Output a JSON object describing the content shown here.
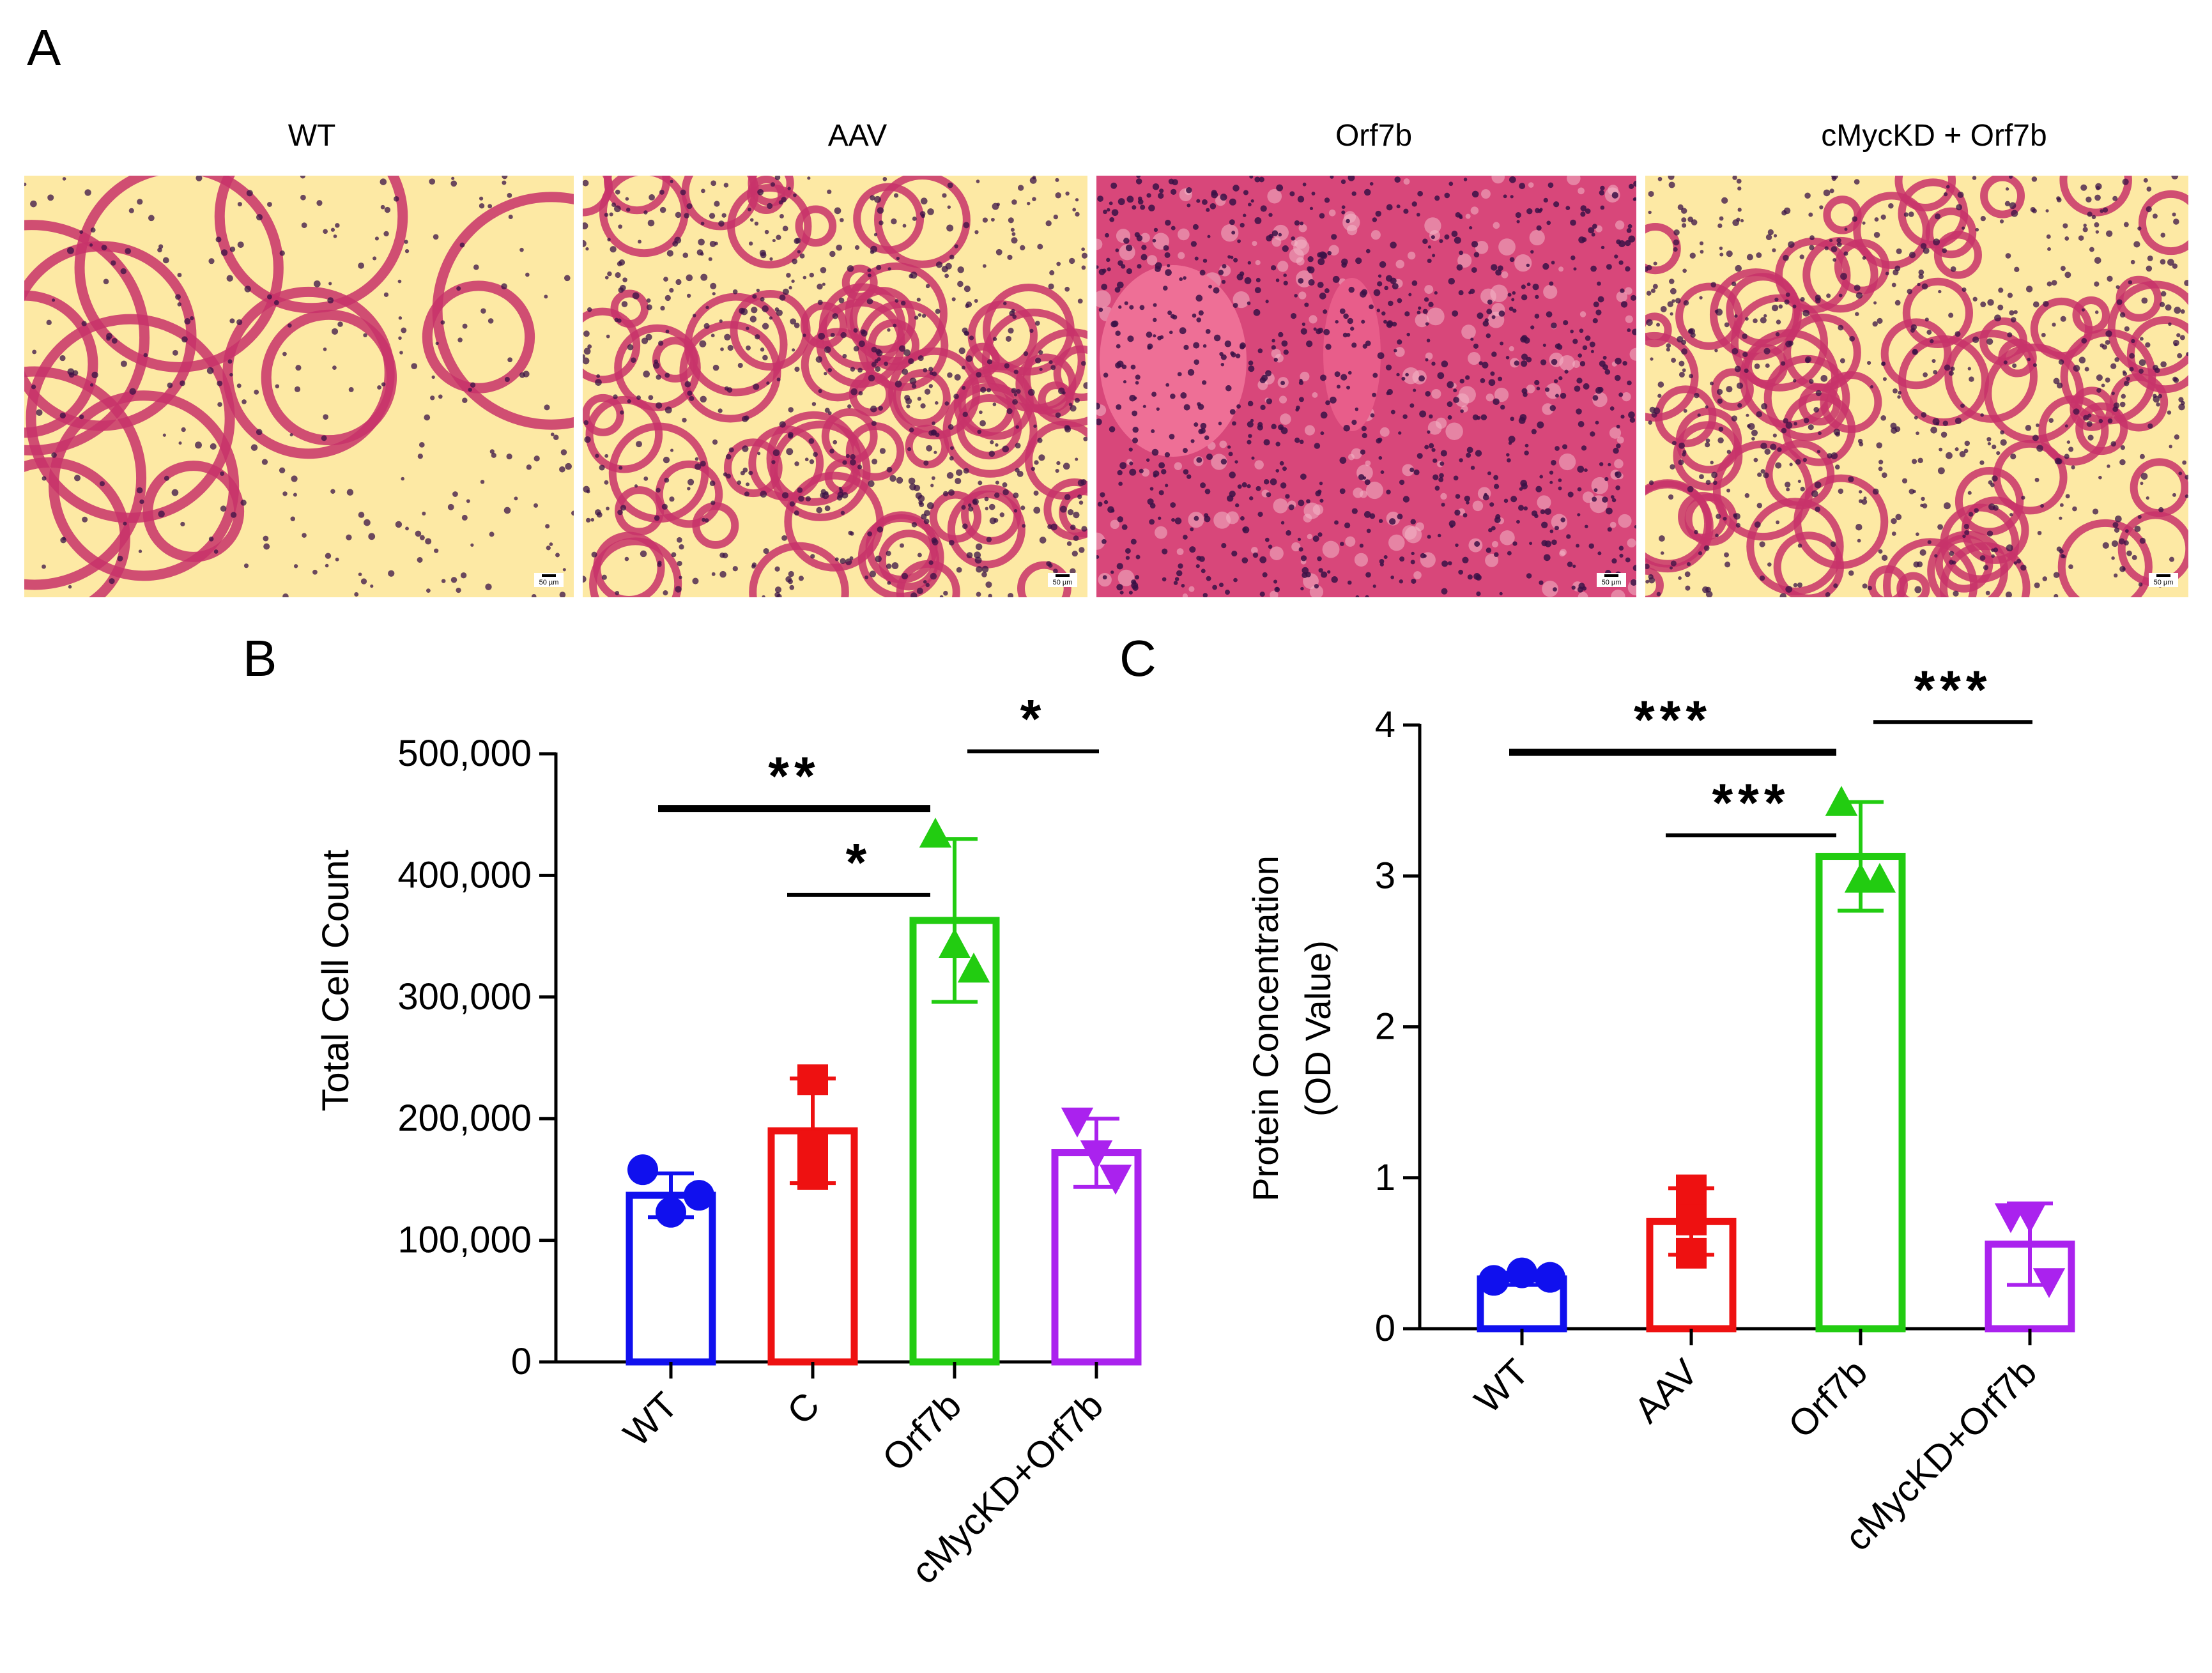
{
  "figure": {
    "panel_labels": [
      "A",
      "B",
      "C"
    ],
    "panel_a": {
      "micrographs": [
        {
          "label": "WT",
          "scale_bar": "50 µm",
          "tissue": "thin-septa"
        },
        {
          "label": "AAV",
          "scale_bar": "50 µm",
          "tissue": "moderate"
        },
        {
          "label": "Orf7b",
          "scale_bar": "50 µm",
          "tissue": "dense"
        },
        {
          "label": "cMycKD + Orf7b",
          "scale_bar": "50 µm",
          "tissue": "moderate-dense"
        }
      ]
    }
  },
  "colors": {
    "WT": "#1010ee",
    "C": "#ee1111",
    "Orf7b": "#22cc11",
    "cMycKD": "#aa22ee",
    "background": "#fde9a4",
    "stain": "#c8336a",
    "nuclei": "#3a1246"
  },
  "chart_data": [
    {
      "panel": "B",
      "type": "bar",
      "title": "",
      "xlabel": "",
      "ylabel": "Total Cell Count",
      "ylim": [
        0,
        500000
      ],
      "yticks": [
        0,
        100000,
        200000,
        300000,
        400000,
        500000
      ],
      "ytick_labels": [
        "0",
        "100,000",
        "200,000",
        "300,000",
        "400,000",
        "500,000"
      ],
      "categories": [
        "WT",
        "C",
        "Orf7b",
        "cMycKD+Orf7b"
      ],
      "colors": [
        "#1010ee",
        "#ee1111",
        "#22cc11",
        "#aa22ee"
      ],
      "markers": [
        "circle",
        "square",
        "triangle-up",
        "triangle-down"
      ],
      "values": [
        137000,
        190000,
        363000,
        172000
      ],
      "sd": [
        18000,
        43000,
        67000,
        28000
      ],
      "points": [
        [
          158000,
          123000,
          137000
        ],
        [
          232000,
          178000,
          154000
        ],
        [
          433000,
          342000,
          322000
        ],
        [
          199000,
          172000,
          152000
        ]
      ],
      "significance": [
        {
          "from": 0,
          "to": 2,
          "y": 455000,
          "label": "**",
          "thick": true
        },
        {
          "from": 1,
          "to": 2,
          "y": 384000,
          "label": "*",
          "thick": false
        },
        {
          "from": 2,
          "to": 3,
          "y": 502000,
          "label": "*",
          "thick": false
        }
      ]
    },
    {
      "panel": "C",
      "type": "bar",
      "title": "",
      "xlabel": "",
      "ylabel": "Protein Concentration",
      "ylabel2": "(OD Value)",
      "ylim": [
        0,
        4
      ],
      "yticks": [
        0,
        1,
        2,
        3,
        4
      ],
      "ytick_labels": [
        "0",
        "1",
        "2",
        "3",
        "4"
      ],
      "categories": [
        "WT",
        "AAV",
        "Orf7b",
        "cMycKD+Orf7b"
      ],
      "colors": [
        "#1010ee",
        "#ee1111",
        "#22cc11",
        "#aa22ee"
      ],
      "markers": [
        "circle",
        "square",
        "triangle-up",
        "triangle-down"
      ],
      "values": [
        0.33,
        0.71,
        3.13,
        0.56
      ],
      "sd": [
        0.04,
        0.22,
        0.36,
        0.27
      ],
      "points": [
        [
          0.32,
          0.37,
          0.34
        ],
        [
          0.92,
          0.72,
          0.5
        ],
        [
          3.48,
          2.97,
          2.97
        ],
        [
          0.75,
          0.75,
          0.32
        ]
      ],
      "significance": [
        {
          "from": 0,
          "to": 2,
          "y": 3.82,
          "label": "***",
          "thick": true
        },
        {
          "from": 1,
          "to": 2,
          "y": 3.27,
          "label": "***",
          "thick": false
        },
        {
          "from": 2,
          "to": 3,
          "y": 4.02,
          "label": "***",
          "thick": false
        }
      ]
    }
  ]
}
